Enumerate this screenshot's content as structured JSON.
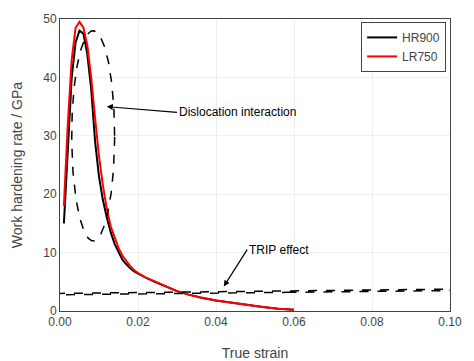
{
  "chart_data": {
    "type": "line",
    "title": "",
    "xlabel": "True strain",
    "ylabel": "Work hardening rate / GPa",
    "xlim": [
      0.0,
      0.1
    ],
    "ylim": [
      0,
      50
    ],
    "xticks": [
      {
        "value": 0.0,
        "label": "0.00"
      },
      {
        "value": 0.02,
        "label": "0.02"
      },
      {
        "value": 0.04,
        "label": "0.04"
      },
      {
        "value": 0.06,
        "label": "0.06"
      },
      {
        "value": 0.08,
        "label": "0.08"
      },
      {
        "value": 0.1,
        "label": "0.10"
      }
    ],
    "yticks": [
      0,
      10,
      20,
      30,
      40,
      50
    ],
    "grid": true,
    "legend": "upper right",
    "series": [
      {
        "name": "HR900",
        "color": "black",
        "line_style": "solid",
        "x": [
          0.001,
          0.002,
          0.003,
          0.004,
          0.005,
          0.006,
          0.007,
          0.008,
          0.0085,
          0.009,
          0.01,
          0.011,
          0.012,
          0.013,
          0.014,
          0.015,
          0.016,
          0.017,
          0.018,
          0.019,
          0.02,
          0.022,
          0.024,
          0.026,
          0.028,
          0.03,
          0.033,
          0.036,
          0.04,
          0.044,
          0.048,
          0.052,
          0.056,
          0.06
        ],
        "values": [
          15.0,
          28.0,
          40.0,
          46.0,
          48.0,
          47.5,
          44.0,
          38.0,
          34.0,
          29.0,
          23.0,
          19.0,
          16.0,
          13.5,
          11.5,
          10.0,
          8.8,
          8.0,
          7.3,
          6.8,
          6.4,
          5.7,
          5.1,
          4.5,
          3.9,
          3.4,
          2.8,
          2.3,
          1.8,
          1.4,
          1.0,
          0.7,
          0.4,
          0.2
        ]
      },
      {
        "name": "LR750",
        "color": "red",
        "line_style": "solid",
        "x": [
          0.001,
          0.002,
          0.003,
          0.004,
          0.005,
          0.006,
          0.007,
          0.008,
          0.009,
          0.01,
          0.011,
          0.012,
          0.013,
          0.014,
          0.015,
          0.016,
          0.017,
          0.018,
          0.019,
          0.02,
          0.022,
          0.024,
          0.026,
          0.028,
          0.03,
          0.033,
          0.036,
          0.04,
          0.044,
          0.048,
          0.052,
          0.056,
          0.06
        ],
        "values": [
          18.0,
          32.0,
          43.0,
          48.5,
          49.5,
          48.5,
          45.5,
          40.0,
          33.0,
          26.5,
          21.5,
          17.5,
          14.5,
          12.5,
          10.8,
          9.5,
          8.5,
          7.7,
          7.0,
          6.5,
          5.7,
          5.1,
          4.5,
          3.9,
          3.4,
          2.8,
          2.3,
          1.8,
          1.4,
          1.0,
          0.7,
          0.4,
          0.2
        ]
      }
    ],
    "ellipses": [
      {
        "cx": 0.0085,
        "cy": 30.0,
        "width": 0.011,
        "height": 36.0,
        "angle": 0,
        "color": "black",
        "line_style": "dashed"
      },
      {
        "cx": 0.041,
        "cy": 3.2,
        "width": 0.035,
        "height": 6.5,
        "angle": -8.0,
        "color": "black",
        "line_style": "dashed"
      }
    ],
    "annotations": [
      {
        "text": "Dislocation interaction",
        "xy": [
          0.012,
          35.0
        ],
        "xytext": [
          0.03,
          34.0
        ]
      },
      {
        "text": "TRIP effect",
        "xy": [
          0.042,
          4.2
        ],
        "xytext": [
          0.048,
          10.5
        ]
      }
    ]
  }
}
